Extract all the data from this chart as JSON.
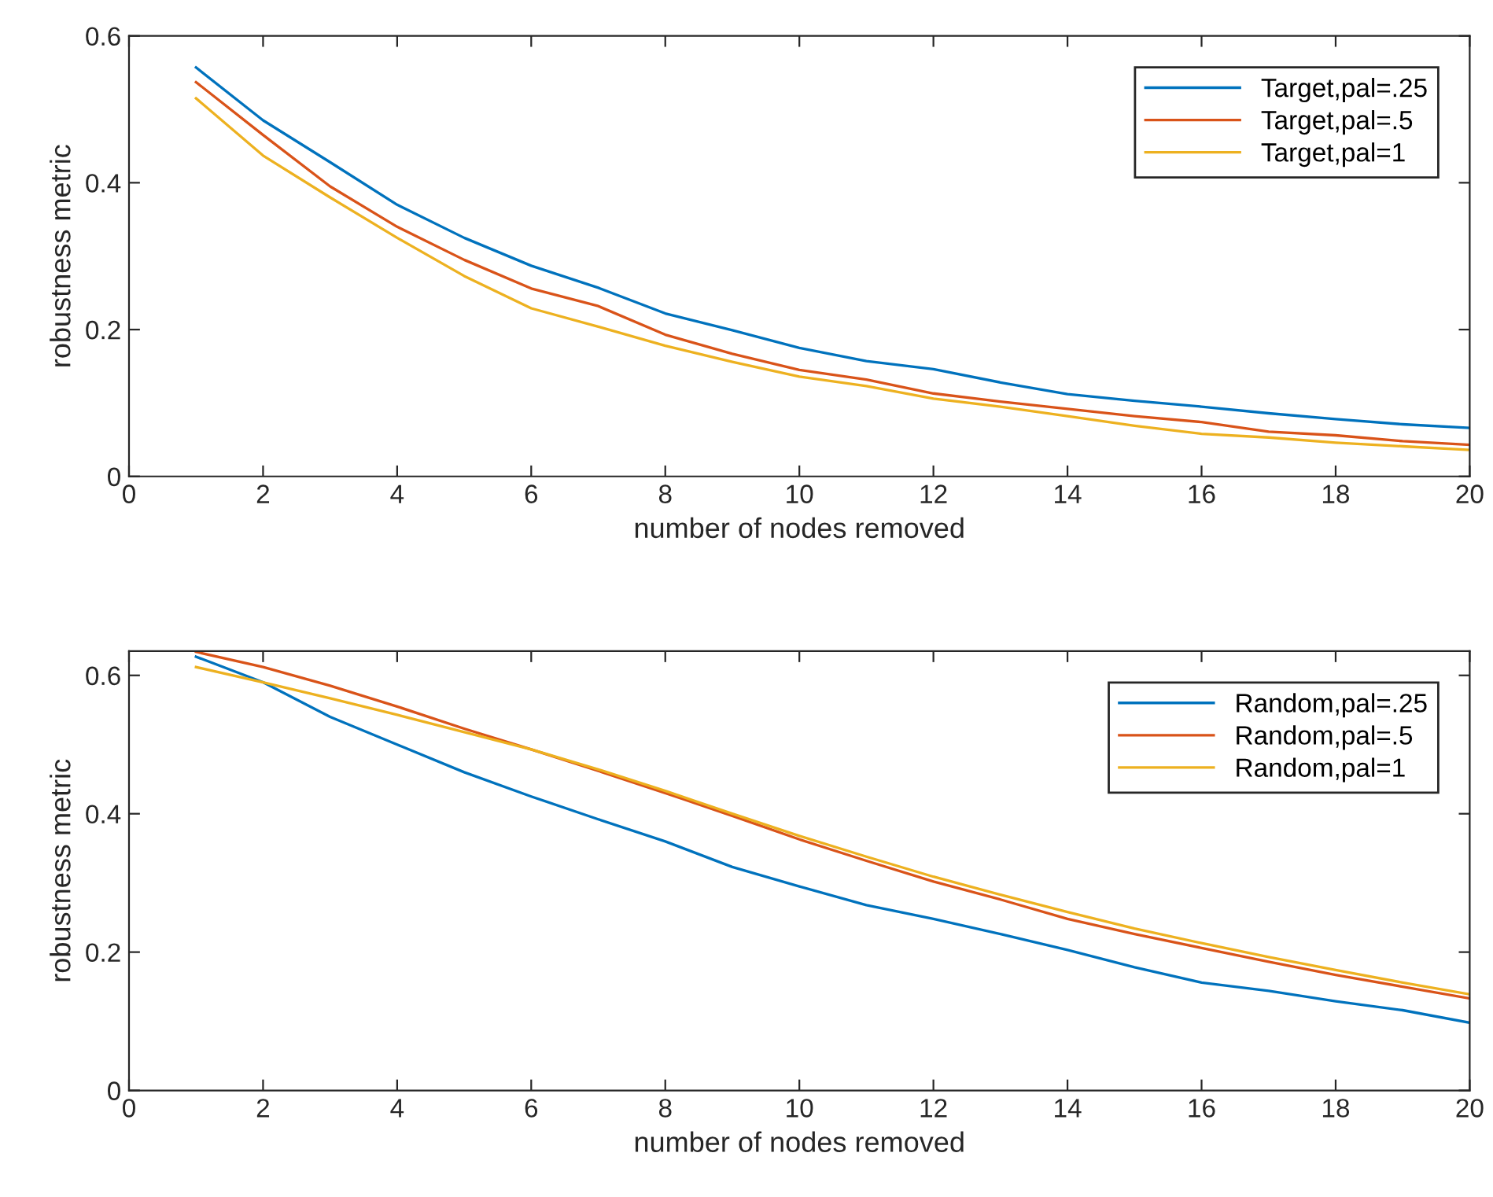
{
  "chart_data": [
    {
      "type": "line",
      "xlabel": "number of nodes removed",
      "ylabel": "robustness metric",
      "x": [
        1,
        2,
        3,
        4,
        5,
        6,
        7,
        8,
        9,
        10,
        11,
        12,
        13,
        14,
        15,
        16,
        17,
        18,
        19,
        20
      ],
      "xlim": [
        0,
        20
      ],
      "xticks": [
        0,
        2,
        4,
        6,
        8,
        10,
        12,
        14,
        16,
        18,
        20
      ],
      "ylim": [
        0,
        0.6
      ],
      "yticks": [
        0,
        0.2,
        0.4,
        0.6
      ],
      "legend": "top right",
      "grid": false,
      "series": [
        {
          "name": "Target,pal=.25",
          "color": "#0072bd",
          "values": [
            0.557,
            0.485,
            0.428,
            0.37,
            0.325,
            0.287,
            0.257,
            0.222,
            0.199,
            0.175,
            0.157,
            0.146,
            0.128,
            0.112,
            0.103,
            0.095,
            0.086,
            0.078,
            0.071,
            0.066
          ]
        },
        {
          "name": "Target,pal=.5",
          "color": "#d95319",
          "values": [
            0.537,
            0.465,
            0.395,
            0.34,
            0.295,
            0.256,
            0.232,
            0.193,
            0.167,
            0.145,
            0.132,
            0.113,
            0.102,
            0.092,
            0.082,
            0.074,
            0.061,
            0.056,
            0.048,
            0.043
          ]
        },
        {
          "name": "Target,pal=1",
          "color": "#edb120",
          "values": [
            0.515,
            0.437,
            0.38,
            0.325,
            0.273,
            0.229,
            0.204,
            0.178,
            0.156,
            0.136,
            0.123,
            0.106,
            0.095,
            0.082,
            0.069,
            0.058,
            0.053,
            0.046,
            0.041,
            0.036
          ]
        }
      ]
    },
    {
      "type": "line",
      "xlabel": "number of nodes removed",
      "ylabel": "robustness metric",
      "x": [
        1,
        2,
        3,
        4,
        5,
        6,
        7,
        8,
        9,
        10,
        11,
        12,
        13,
        14,
        15,
        16,
        17,
        18,
        19,
        20
      ],
      "xlim": [
        0,
        20
      ],
      "xticks": [
        0,
        2,
        4,
        6,
        8,
        10,
        12,
        14,
        16,
        18,
        20
      ],
      "ylim": [
        0,
        0.635
      ],
      "yticks": [
        0,
        0.2,
        0.4,
        0.6
      ],
      "legend": "top right",
      "grid": false,
      "series": [
        {
          "name": "Random,pal=.25",
          "color": "#0072bd",
          "values": [
            0.627,
            0.59,
            0.54,
            0.5,
            0.46,
            0.425,
            0.392,
            0.36,
            0.323,
            0.295,
            0.268,
            0.248,
            0.226,
            0.203,
            0.178,
            0.156,
            0.144,
            0.129,
            0.116,
            0.098
          ]
        },
        {
          "name": "Random,pal=.5",
          "color": "#d95319",
          "values": [
            0.634,
            0.612,
            0.585,
            0.555,
            0.523,
            0.493,
            0.462,
            0.43,
            0.397,
            0.363,
            0.332,
            0.302,
            0.276,
            0.248,
            0.226,
            0.206,
            0.186,
            0.167,
            0.15,
            0.133
          ]
        },
        {
          "name": "Random,pal=1",
          "color": "#edb120",
          "values": [
            0.612,
            0.59,
            0.567,
            0.543,
            0.518,
            0.493,
            0.464,
            0.433,
            0.4,
            0.368,
            0.338,
            0.309,
            0.283,
            0.258,
            0.234,
            0.213,
            0.193,
            0.174,
            0.156,
            0.139
          ]
        }
      ]
    }
  ]
}
